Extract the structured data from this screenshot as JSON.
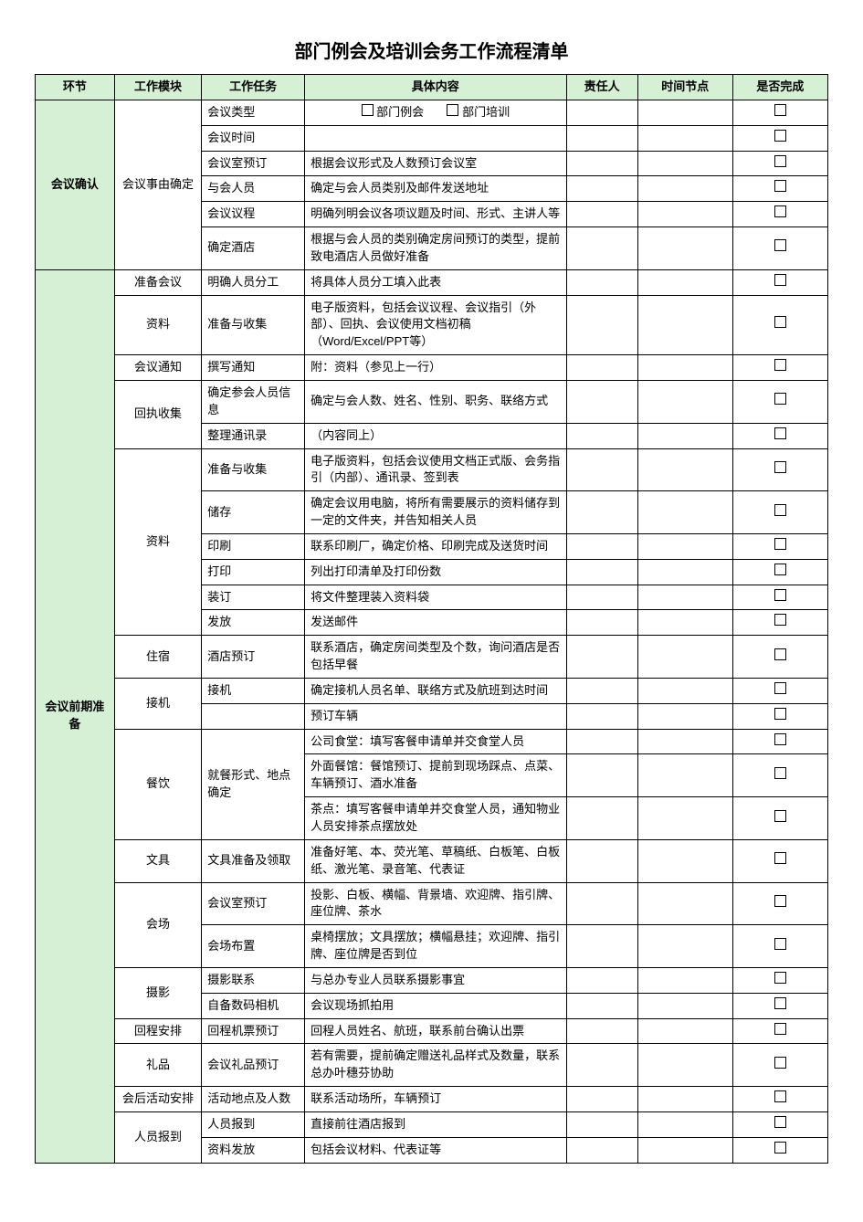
{
  "title": "部门例会及培训会务工作流程清单",
  "headers": [
    "环节",
    "工作模块",
    "工作任务",
    "具体内容",
    "责任人",
    "时间节点",
    "是否完成"
  ],
  "checkbox_option_labels": {
    "opt1": "部门例会",
    "opt2": "部门培训"
  },
  "colors": {
    "header_bg": "#d6f0d6",
    "border": "#000000",
    "text": "#000000",
    "page_bg": "#ffffff"
  },
  "column_widths_pct": [
    10,
    11,
    13,
    33,
    9,
    12,
    12
  ],
  "font": {
    "family": "Microsoft YaHei / SimSun",
    "body_size_pt": 10,
    "title_size_pt": 16
  },
  "phases": [
    {
      "name": "会议确认",
      "modules": [
        {
          "name": "会议事由确定",
          "rows": [
            {
              "task": "会议类型",
              "content_type": "options"
            },
            {
              "task": "会议时间",
              "content": ""
            },
            {
              "task": "会议室预订",
              "content": "根据会议形式及人数预订会议室"
            },
            {
              "task": "与会人员",
              "content": "确定与会人员类别及邮件发送地址"
            },
            {
              "task": "会议议程",
              "content": "明确列明会议各项议题及时间、形式、主讲人等"
            },
            {
              "task": "确定酒店",
              "content": "根据与会人员的类别确定房间预订的类型，提前致电酒店人员做好准备"
            }
          ]
        }
      ]
    },
    {
      "name": "会议前期准备",
      "modules": [
        {
          "name": "准备会议",
          "rows": [
            {
              "task": "明确人员分工",
              "content": "将具体人员分工填入此表"
            }
          ]
        },
        {
          "name": "资料",
          "rows": [
            {
              "task": "准备与收集",
              "content": "电子版资料，包括会议议程、会议指引（外部）、回执、会议使用文档初稿（Word/Excel/PPT等）"
            }
          ]
        },
        {
          "name": "会议通知",
          "rows": [
            {
              "task": "撰写通知",
              "content": "附：资料（参见上一行）"
            }
          ]
        },
        {
          "name": "回执收集",
          "rows": [
            {
              "task": "确定参会人员信息",
              "content": "确定与会人数、姓名、性别、职务、联络方式"
            },
            {
              "task": "整理通讯录",
              "content": "（内容同上）"
            }
          ]
        },
        {
          "name": "资料",
          "rows": [
            {
              "task": "准备与收集",
              "content": "电子版资料，包括会议使用文档正式版、会务指引（内部）、通讯录、签到表"
            },
            {
              "task": "储存",
              "content": "确定会议用电脑，将所有需要展示的资料储存到一定的文件夹，并告知相关人员"
            },
            {
              "task": "印刷",
              "content": "联系印刷厂，确定价格、印刷完成及送货时间"
            },
            {
              "task": "打印",
              "content": "列出打印清单及打印份数"
            },
            {
              "task": "装订",
              "content": "将文件整理装入资料袋"
            },
            {
              "task": "发放",
              "content": "发送邮件"
            }
          ]
        },
        {
          "name": "住宿",
          "rows": [
            {
              "task": "酒店预订",
              "content": "联系酒店，确定房间类型及个数，询问酒店是否包括早餐"
            }
          ]
        },
        {
          "name": "接机",
          "rows": [
            {
              "task": "接机",
              "content": "确定接机人员名单、联络方式及航班到达时间"
            },
            {
              "task": "",
              "content": "预订车辆"
            }
          ]
        },
        {
          "name": "餐饮",
          "rows": [
            {
              "task": "就餐形式、地点确定",
              "task_rowspan": 3,
              "content": "公司食堂：填写客餐申请单并交食堂人员"
            },
            {
              "content": "外面餐馆：餐馆预订、提前到现场踩点、点菜、车辆预订、酒水准备"
            },
            {
              "content": "茶点：填写客餐申请单并交食堂人员，通知物业人员安排茶点摆放处"
            }
          ]
        },
        {
          "name": "文具",
          "rows": [
            {
              "task": "文具准备及领取",
              "content": "准备好笔、本、荧光笔、草稿纸、白板笔、白板纸、激光笔、录音笔、代表证"
            }
          ]
        },
        {
          "name": "会场",
          "rows": [
            {
              "task": "会议室预订",
              "content": "投影、白板、横幅、背景墙、欢迎牌、指引牌、座位牌、茶水"
            },
            {
              "task": "会场布置",
              "content": "桌椅摆放；文具摆放；横幅悬挂；欢迎牌、指引牌、座位牌是否到位"
            }
          ]
        },
        {
          "name": "摄影",
          "rows": [
            {
              "task": "摄影联系",
              "content": "与总办专业人员联系摄影事宜"
            },
            {
              "task": "自备数码相机",
              "content": "会议现场抓拍用"
            }
          ]
        },
        {
          "name": "回程安排",
          "rows": [
            {
              "task": "回程机票预订",
              "content": "回程人员姓名、航班，联系前台确认出票"
            }
          ]
        },
        {
          "name": "礼品",
          "rows": [
            {
              "task": "会议礼品预订",
              "content": "若有需要，提前确定赠送礼品样式及数量，联系总办叶穗芬协助"
            }
          ]
        },
        {
          "name": "会后活动安排",
          "rows": [
            {
              "task": "活动地点及人数",
              "content": "联系活动场所，车辆预订"
            }
          ]
        },
        {
          "name": "人员报到",
          "rows": [
            {
              "task": "人员报到",
              "content": "直接前往酒店报到"
            },
            {
              "task": "资料发放",
              "content": "包括会议材料、代表证等"
            }
          ]
        }
      ]
    }
  ]
}
